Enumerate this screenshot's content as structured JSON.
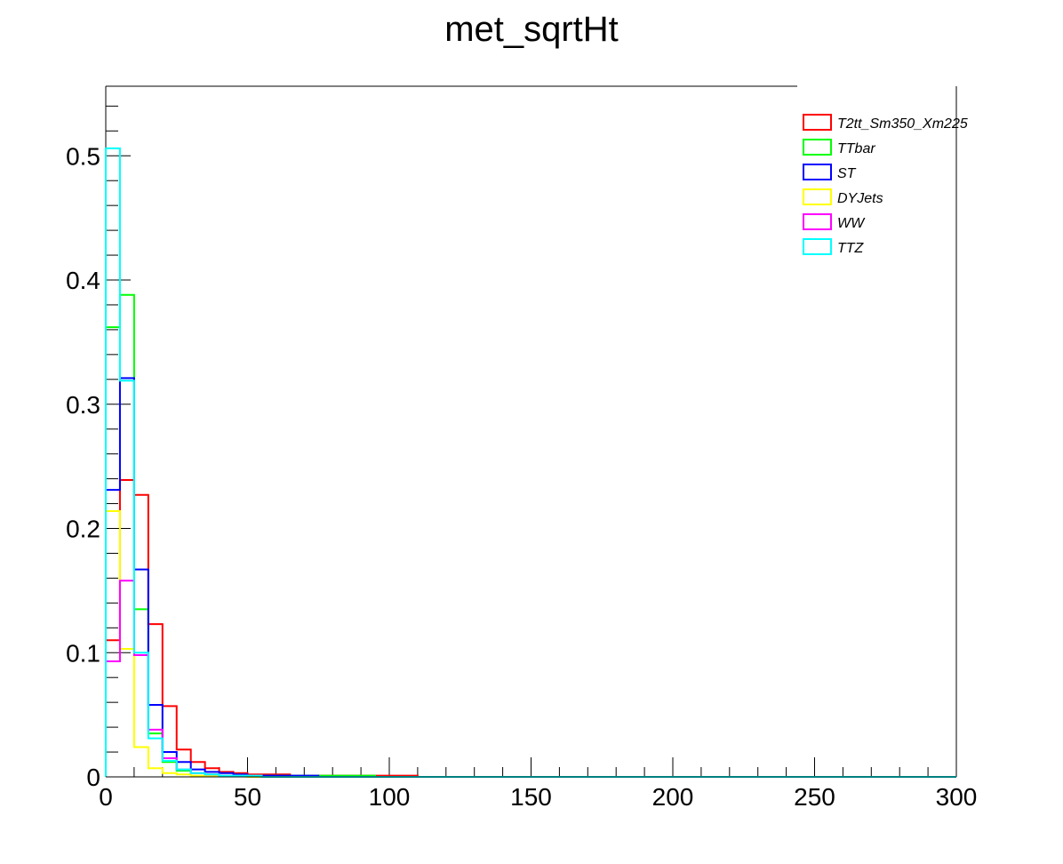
{
  "chart_data": {
    "type": "histogram-step",
    "title": "met_sqrtHt",
    "xlabel": "",
    "ylabel": "",
    "xlim": [
      0,
      300
    ],
    "ylim": [
      0,
      0.556
    ],
    "bin_width": 5,
    "x_ticks": [
      "0",
      "50",
      "100",
      "150",
      "200",
      "250",
      "300"
    ],
    "y_ticks": [
      "0",
      "0.1",
      "0.2",
      "0.3",
      "0.4",
      "0.5"
    ],
    "x_tick_values": [
      0,
      50,
      100,
      150,
      200,
      250,
      300
    ],
    "y_tick_values": [
      0,
      0.1,
      0.2,
      0.3,
      0.4,
      0.5
    ],
    "grid": false,
    "legend_position": "top-right",
    "series": [
      {
        "name": "T2tt_Sm350_Xm225",
        "color": "#ff0000",
        "values": [
          0.11,
          0.239,
          0.227,
          0.123,
          0.057,
          0.022,
          0.012,
          0.007,
          0.004,
          0.003,
          0.002,
          0.002,
          0.002,
          0.001,
          0.001,
          0.001,
          0.001,
          0.001,
          0.001,
          0.001,
          0.001,
          0.001
        ]
      },
      {
        "name": "TTbar",
        "color": "#00ff00",
        "values": [
          0.362,
          0.388,
          0.135,
          0.035,
          0.012,
          0.005,
          0.003,
          0.002,
          0.001,
          0.001,
          0.001,
          0.001,
          0.001,
          0.001,
          0.001,
          0.001,
          0.001,
          0.001,
          0.001
        ]
      },
      {
        "name": "ST",
        "color": "#0000ff",
        "values": [
          0.231,
          0.321,
          0.167,
          0.058,
          0.02,
          0.012,
          0.006,
          0.004,
          0.003,
          0.002,
          0.001,
          0.001,
          0.001,
          0.001,
          0.001
        ]
      },
      {
        "name": "DYJets",
        "color": "#ffff00",
        "values": [
          0.214,
          0.103,
          0.024,
          0.007,
          0.003,
          0.002,
          0.001,
          0.001,
          0.001,
          0.001
        ]
      },
      {
        "name": "WW",
        "color": "#ff00ff",
        "values": [
          0.093,
          0.158,
          0.098,
          0.038,
          0.015,
          0.006,
          0.003,
          0.002,
          0.001,
          0.001,
          0.001
        ]
      },
      {
        "name": "TTZ",
        "color": "#00ffff",
        "values": [
          0.506,
          0.319,
          0.1,
          0.031,
          0.013,
          0.006,
          0.003,
          0.002,
          0.001,
          0.001,
          0.001
        ]
      }
    ]
  }
}
